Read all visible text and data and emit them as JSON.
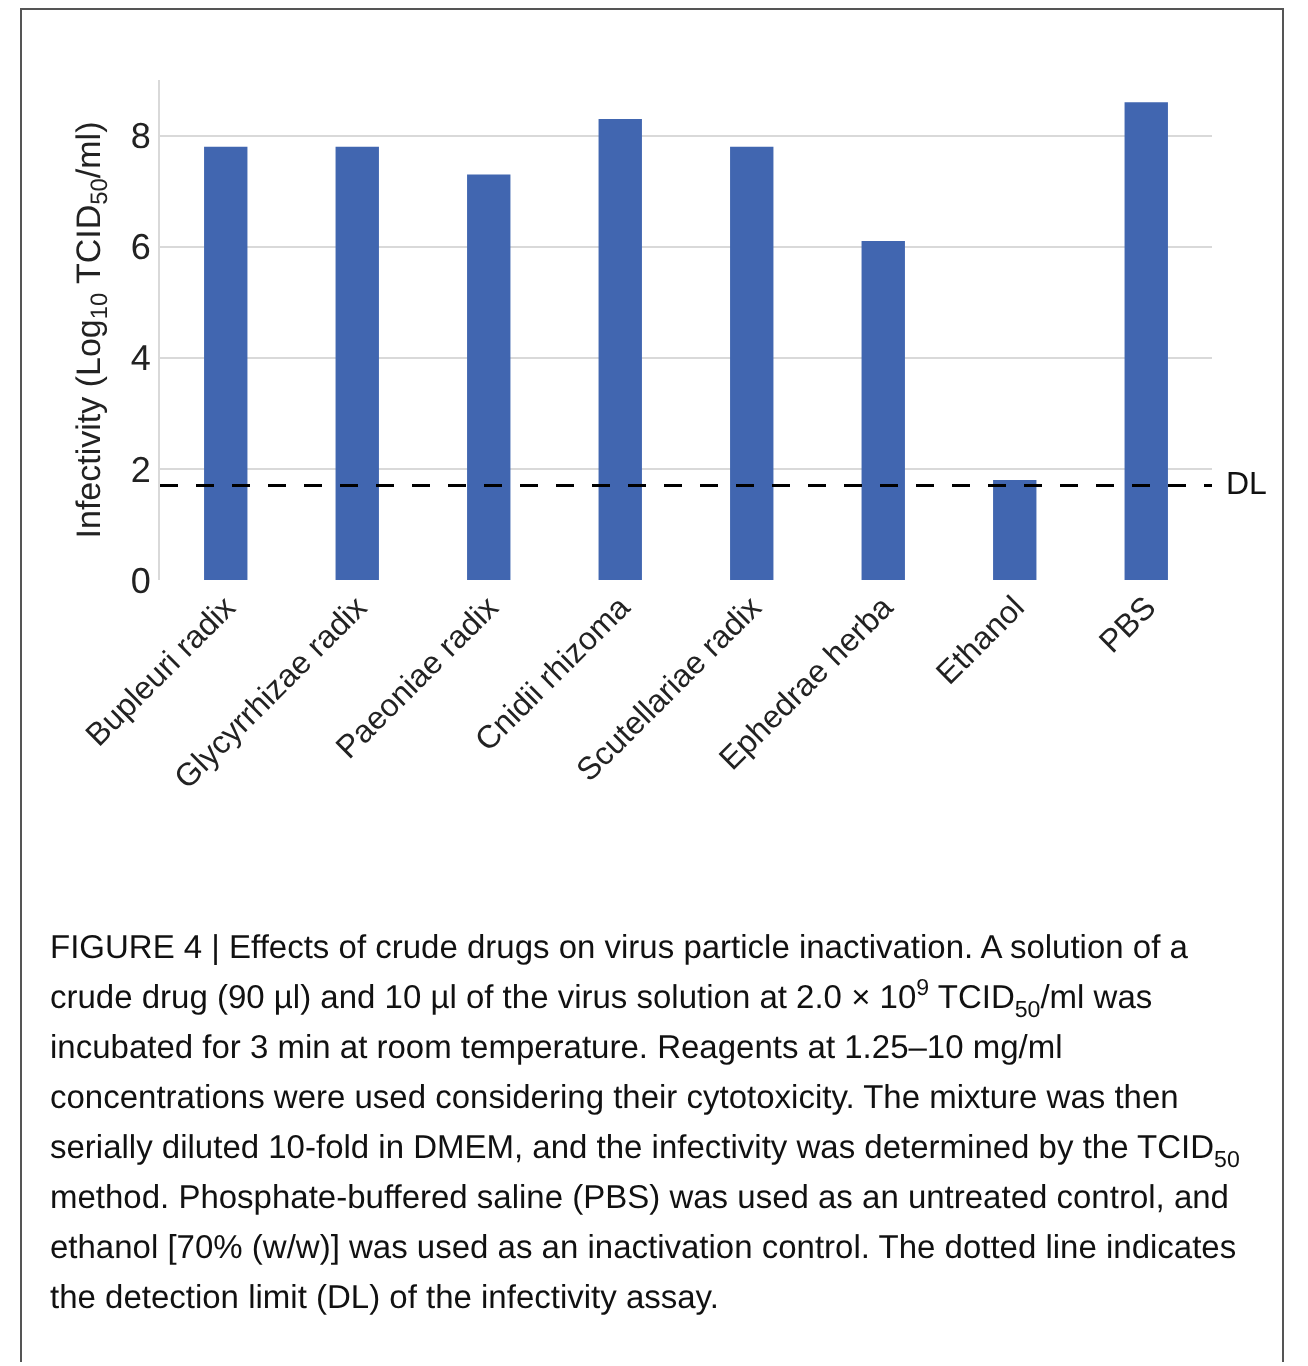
{
  "chart_data": {
    "type": "bar",
    "ylabel": "Infectivity (Log$_{10}$ TCID$_{50}$/ml)",
    "categories": [
      "Bupleuri radix",
      "Glycyrrhizae radix",
      "Paeoniae radix",
      "Cnidii rhizoma",
      "Scutellariae radix",
      "Ephedrae herba",
      "Ethanol",
      "PBS"
    ],
    "values": [
      7.8,
      7.8,
      7.3,
      8.3,
      7.8,
      6.1,
      1.8,
      8.6
    ],
    "color": "#4166b0",
    "ylim": [
      0,
      9
    ],
    "yticks": [
      0,
      2,
      4,
      6,
      8
    ],
    "grid": "y",
    "ref_lines": [
      {
        "axis": "y",
        "value": 1.7,
        "label": "DL",
        "color": "#000000",
        "line_style": "dashed"
      }
    ],
    "annotations": [
      "FIGURE 4 | Effects of crude drugs on virus particle inactivation. A solution of a crude drug (90 µl) and 10 µl of the virus solution at 2.0 × 10$^{9}$ TCID$_{50}$/ml was incubated for 3 min at room temperature. Reagents at 1.25–10 mg/ml concentrations were used considering their cytotoxicity. The mixture was then serially diluted 10-fold in DMEM, and the infectivity was determined by the TCID$_{50}$ method. Phosphate-buffered saline (PBS) was used as an untreated control, and ethanol [70% (w/w)] was used as an inactivation control. The dotted line indicates the detection limit (DL) of the infectivity assay."
    ]
  }
}
